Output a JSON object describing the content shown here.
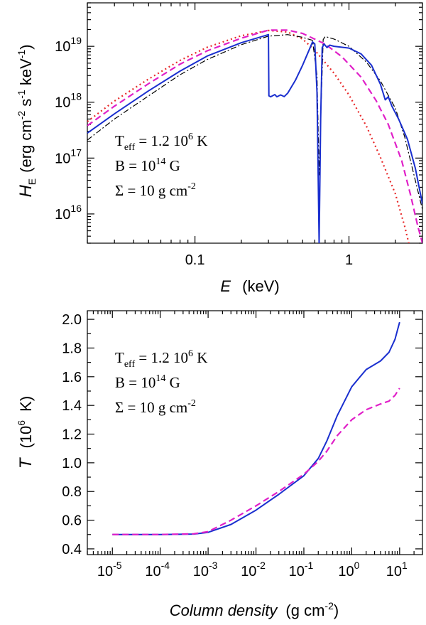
{
  "chart_data": [
    {
      "type": "line",
      "xscale": "log",
      "yscale": "log",
      "xlim": [
        0.02,
        3.0
      ],
      "ylim": [
        3000000000000000.0,
        6e+19
      ],
      "xlabel": "E",
      "xlabel_unit": "(keV)",
      "ylabel_sym": "H",
      "ylabel_sub": "E",
      "ylabel_unit_parts": [
        "(erg cm",
        "-2",
        " s",
        "-1",
        " keV",
        "-1",
        ")"
      ],
      "xticks": [
        {
          "v": 0.1,
          "label": "0.1"
        },
        {
          "v": 1,
          "label": "1"
        }
      ],
      "yticks": [
        {
          "v": 1e+16,
          "base": "10",
          "exp": "16"
        },
        {
          "v": 1e+17,
          "base": "10",
          "exp": "17"
        },
        {
          "v": 1e+18,
          "base": "10",
          "exp": "18"
        },
        {
          "v": 1e+19,
          "base": "10",
          "exp": "19"
        }
      ],
      "annotation": [
        {
          "parts": [
            {
              "t": "T"
            },
            {
              "t": "eff",
              "sub": true
            },
            {
              "t": " = 1.2 10"
            },
            {
              "t": "6",
              "sup": true
            },
            {
              "t": " K"
            }
          ]
        },
        {
          "parts": [
            {
              "t": "B = 10"
            },
            {
              "t": "14",
              "sup": true
            },
            {
              "t": " G"
            }
          ]
        },
        {
          "parts": [
            {
              "t": "Σ = 10 g cm"
            },
            {
              "t": "-2",
              "sup": true
            }
          ]
        }
      ],
      "series": [
        {
          "name": "red-dotted",
          "color": "#e8292a",
          "dash": "2,4",
          "width": 2.2,
          "points": [
            [
              0.02,
              4.5e+17
            ],
            [
              0.03,
              1.05e+18
            ],
            [
              0.05,
              2.6e+18
            ],
            [
              0.08,
              5.6e+18
            ],
            [
              0.12,
              9.6e+18
            ],
            [
              0.2,
              1.55e+19
            ],
            [
              0.3,
              1.92e+19
            ],
            [
              0.4,
              1.8e+19
            ],
            [
              0.5,
              1.35e+19
            ],
            [
              0.6,
              8.5e+18
            ],
            [
              0.8,
              3.3e+18
            ],
            [
              1.0,
              1.35e+18
            ],
            [
              1.3,
              3.7e+17
            ],
            [
              1.6,
              1.03e+17
            ],
            [
              2.0,
              2.3e+16
            ],
            [
              2.3,
              6000000000000000.0
            ],
            [
              2.6,
              1500000000000000.0
            ]
          ]
        },
        {
          "name": "magenta-dashed",
          "color": "#e020c8",
          "dash": "9,5",
          "width": 2.2,
          "points": [
            [
              0.02,
              3.8e+17
            ],
            [
              0.03,
              8.5e+17
            ],
            [
              0.05,
              2.15e+18
            ],
            [
              0.08,
              4.8e+18
            ],
            [
              0.12,
              8.3e+18
            ],
            [
              0.2,
              1.4e+19
            ],
            [
              0.3,
              1.95e+19
            ],
            [
              0.4,
              1.95e+19
            ],
            [
              0.5,
              1.7e+19
            ],
            [
              0.7,
              1.1e+19
            ],
            [
              0.9,
              6.5e+18
            ],
            [
              1.2,
              2.8e+18
            ],
            [
              1.5,
              1.07e+18
            ],
            [
              1.8,
              4e+17
            ],
            [
              2.2,
              9e+16
            ],
            [
              2.5,
              2.3e+16
            ],
            [
              2.8,
              6000000000000000.0
            ],
            [
              3.0,
              3000000000000000.0
            ]
          ]
        },
        {
          "name": "black-dashdot",
          "color": "#000000",
          "dash": "8,3,2,3",
          "width": 1.2,
          "points": [
            [
              0.02,
              2.1e+17
            ],
            [
              0.03,
              5e+17
            ],
            [
              0.05,
              1.3e+18
            ],
            [
              0.08,
              3.1e+18
            ],
            [
              0.12,
              5.8e+18
            ],
            [
              0.2,
              1.07e+19
            ],
            [
              0.3,
              1.52e+19
            ],
            [
              0.4,
              1.62e+19
            ],
            [
              0.5,
              1.45e+19
            ],
            [
              0.58,
              1.28e+19
            ],
            [
              0.62,
              3e+18
            ],
            [
              0.64,
              5e+16
            ],
            [
              0.66,
              1e+18
            ],
            [
              0.68,
              1.32e+19
            ],
            [
              0.7,
              1.5e+19
            ],
            [
              0.8,
              1.35e+19
            ],
            [
              1.0,
              1e+19
            ],
            [
              1.3,
              5.2e+18
            ],
            [
              1.6,
              2.4e+18
            ],
            [
              2.0,
              7.8e+17
            ],
            [
              2.3,
              2.4e+17
            ],
            [
              2.6,
              6e+16
            ],
            [
              3.0,
              1.2e+16
            ]
          ]
        },
        {
          "name": "blue-solid",
          "color": "#1a2fcf",
          "dash": "",
          "width": 2.0,
          "points": [
            [
              0.02,
              2.8e+17
            ],
            [
              0.03,
              6.2e+17
            ],
            [
              0.05,
              1.6e+18
            ],
            [
              0.08,
              3.6e+18
            ],
            [
              0.12,
              6.7e+18
            ],
            [
              0.2,
              1.16e+19
            ],
            [
              0.3,
              1.62e+19
            ],
            [
              0.302,
              1.3e+18
            ],
            [
              0.31,
              1.25e+18
            ],
            [
              0.33,
              1.37e+18
            ],
            [
              0.34,
              1.25e+18
            ],
            [
              0.36,
              1.35e+18
            ],
            [
              0.38,
              1.26e+18
            ],
            [
              0.4,
              1.45e+18
            ],
            [
              0.45,
              2.5e+18
            ],
            [
              0.5,
              4.6e+18
            ],
            [
              0.55,
              8.5e+18
            ],
            [
              0.58,
              1.2e+19
            ],
            [
              0.6,
              1.1e+19
            ],
            [
              0.62,
              1.5e+18
            ],
            [
              0.64,
              3000000000000000.0
            ],
            [
              0.655,
              5e+17
            ],
            [
              0.67,
              9.5e+18
            ],
            [
              0.69,
              1.1e+19
            ],
            [
              0.72,
              9.5e+18
            ],
            [
              0.75,
              1.05e+19
            ],
            [
              0.8,
              1e+19
            ],
            [
              1.0,
              9.3e+18
            ],
            [
              1.2,
              7.3e+18
            ],
            [
              1.4,
              4.6e+18
            ],
            [
              1.6,
              2.1e+18
            ],
            [
              1.72,
              1.1e+18
            ],
            [
              1.8,
              1.25e+18
            ],
            [
              1.9,
              8.5e+17
            ],
            [
              2.1,
              5e+17
            ],
            [
              2.4,
              2.15e+17
            ],
            [
              2.7,
              6.5e+16
            ],
            [
              3.0,
              1.5e+16
            ]
          ]
        }
      ]
    },
    {
      "type": "line",
      "xscale": "log",
      "yscale": "linear",
      "xlim": [
        3e-06,
        30
      ],
      "ylim": [
        0.36,
        2.06
      ],
      "xlabel": "Column density",
      "xlabel_unit_parts": [
        "(g cm",
        "-2",
        ")"
      ],
      "ylabel_sym": "T",
      "ylabel_unit_parts": [
        "(10",
        "6",
        " K)"
      ],
      "xticks": [
        {
          "v": 1e-05,
          "base": "10",
          "exp": "-5"
        },
        {
          "v": 0.0001,
          "base": "10",
          "exp": "-4"
        },
        {
          "v": 0.001,
          "base": "10",
          "exp": "-3"
        },
        {
          "v": 0.01,
          "base": "10",
          "exp": "-2"
        },
        {
          "v": 0.1,
          "base": "10",
          "exp": "-1"
        },
        {
          "v": 1,
          "base": "10",
          "exp": "0"
        },
        {
          "v": 10,
          "base": "10",
          "exp": "1"
        }
      ],
      "yticks": [
        {
          "v": 0.4,
          "label": "0.4"
        },
        {
          "v": 0.6,
          "label": "0.6"
        },
        {
          "v": 0.8,
          "label": "0.8"
        },
        {
          "v": 1.0,
          "label": "1.0"
        },
        {
          "v": 1.2,
          "label": "1.2"
        },
        {
          "v": 1.4,
          "label": "1.4"
        },
        {
          "v": 1.6,
          "label": "1.6"
        },
        {
          "v": 1.8,
          "label": "1.8"
        },
        {
          "v": 2.0,
          "label": "2.0"
        }
      ],
      "annotation": [
        {
          "parts": [
            {
              "t": "T"
            },
            {
              "t": "eff",
              "sub": true
            },
            {
              "t": " = 1.2 10"
            },
            {
              "t": "6",
              "sup": true
            },
            {
              "t": " K"
            }
          ]
        },
        {
          "parts": [
            {
              "t": "B = 10"
            },
            {
              "t": "14",
              "sup": true
            },
            {
              "t": " G"
            }
          ]
        },
        {
          "parts": [
            {
              "t": "Σ = 10 g cm"
            },
            {
              "t": "-2",
              "sup": true
            }
          ]
        }
      ],
      "series": [
        {
          "name": "blue-solid",
          "color": "#1a2fcf",
          "dash": "",
          "width": 2.0,
          "points": [
            [
              1e-05,
              0.5
            ],
            [
              0.0001,
              0.5
            ],
            [
              0.0005,
              0.503
            ],
            [
              0.001,
              0.515
            ],
            [
              0.003,
              0.57
            ],
            [
              0.01,
              0.67
            ],
            [
              0.03,
              0.78
            ],
            [
              0.1,
              0.91
            ],
            [
              0.2,
              1.03
            ],
            [
              0.3,
              1.15
            ],
            [
              0.5,
              1.33
            ],
            [
              1,
              1.53
            ],
            [
              2,
              1.65
            ],
            [
              4,
              1.71
            ],
            [
              6,
              1.77
            ],
            [
              8,
              1.86
            ],
            [
              10,
              1.98
            ]
          ]
        },
        {
          "name": "magenta-dashed",
          "color": "#e020c8",
          "dash": "9,5",
          "width": 2.2,
          "points": [
            [
              1e-05,
              0.5
            ],
            [
              0.0001,
              0.5
            ],
            [
              0.0005,
              0.505
            ],
            [
              0.001,
              0.52
            ],
            [
              0.003,
              0.6
            ],
            [
              0.01,
              0.7
            ],
            [
              0.03,
              0.8
            ],
            [
              0.1,
              0.92
            ],
            [
              0.2,
              1.01
            ],
            [
              0.3,
              1.08
            ],
            [
              0.5,
              1.19
            ],
            [
              1,
              1.3
            ],
            [
              2,
              1.37
            ],
            [
              4,
              1.41
            ],
            [
              6,
              1.43
            ],
            [
              8,
              1.47
            ],
            [
              10,
              1.52
            ]
          ]
        }
      ]
    }
  ]
}
